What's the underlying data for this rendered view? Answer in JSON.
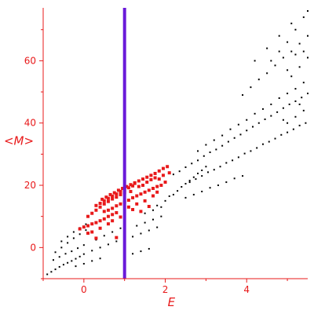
{
  "chart_data": {
    "type": "scatter",
    "xlabel": "E",
    "ylabel": "<M>",
    "xlim": [
      -1.0,
      5.5
    ],
    "ylim": [
      -10,
      77
    ],
    "x_ticks": [
      0,
      2,
      4
    ],
    "y_ticks": [
      0,
      20,
      40,
      60
    ],
    "grid": false,
    "vertical_line": {
      "x": 1.0,
      "color": "#6a1ad9"
    },
    "colors": {
      "axis": "#e8191a",
      "highlight": "#e8191a",
      "background_points": "#000000"
    },
    "series": [
      {
        "color": "#000000",
        "marker": "dot",
        "points": [
          [
            -0.9,
            -8.6
          ],
          [
            -0.8,
            -7.8
          ],
          [
            -0.7,
            -7.0
          ],
          [
            -0.6,
            -6.2
          ],
          [
            -0.5,
            -5.5
          ],
          [
            -0.4,
            -4.9
          ],
          [
            -0.3,
            -4.3
          ],
          [
            -0.2,
            -3.6
          ],
          [
            -0.1,
            -2.9
          ],
          [
            0.0,
            -2.1
          ],
          [
            -0.75,
            -4.0
          ],
          [
            -0.6,
            -3.0
          ],
          [
            -0.45,
            -2.0
          ],
          [
            -0.3,
            -1.2
          ],
          [
            -0.15,
            -0.2
          ],
          [
            0.0,
            0.8
          ],
          [
            -0.7,
            -1.5
          ],
          [
            -0.55,
            0.0
          ],
          [
            -0.4,
            1.5
          ],
          [
            -0.25,
            3.0
          ],
          [
            -0.1,
            4.3
          ],
          [
            0.05,
            5.6
          ],
          [
            -0.55,
            2.0
          ],
          [
            -0.4,
            3.5
          ],
          [
            -0.25,
            5.0
          ],
          [
            -0.1,
            6.3
          ],
          [
            0.05,
            7.5
          ],
          [
            -0.2,
            -6.0
          ],
          [
            0.0,
            -5.2
          ],
          [
            0.2,
            -4.3
          ],
          [
            0.4,
            -3.5
          ],
          [
            0.2,
            -1.0
          ],
          [
            0.4,
            0.0
          ],
          [
            0.6,
            1.0
          ],
          [
            0.8,
            2.0
          ],
          [
            0.3,
            2.5
          ],
          [
            0.5,
            3.8
          ],
          [
            0.7,
            5.0
          ],
          [
            0.9,
            6.2
          ],
          [
            1.2,
            3.5
          ],
          [
            1.4,
            4.5
          ],
          [
            1.6,
            5.5
          ],
          [
            1.8,
            6.5
          ],
          [
            1.3,
            7.0
          ],
          [
            1.5,
            8.0
          ],
          [
            1.7,
            9.0
          ],
          [
            1.9,
            10.0
          ],
          [
            1.5,
            11.0
          ],
          [
            1.7,
            12.0
          ],
          [
            1.9,
            13.0
          ],
          [
            1.2,
            -2.0
          ],
          [
            1.4,
            -1.2
          ],
          [
            1.6,
            -0.4
          ],
          [
            1.8,
            13.5
          ],
          [
            2.0,
            15.0
          ],
          [
            2.1,
            16.5
          ],
          [
            2.2,
            17.0
          ],
          [
            2.3,
            18.2
          ],
          [
            2.4,
            19.5
          ],
          [
            2.5,
            20.5
          ],
          [
            2.6,
            21.5
          ],
          [
            2.7,
            22.6
          ],
          [
            2.8,
            23.8
          ],
          [
            2.9,
            24.8
          ],
          [
            3.0,
            26.0
          ],
          [
            2.2,
            23.5
          ],
          [
            2.35,
            24.5
          ],
          [
            2.5,
            25.8
          ],
          [
            2.65,
            27.0
          ],
          [
            2.8,
            28.0
          ],
          [
            2.95,
            29.4
          ],
          [
            3.1,
            30.6
          ],
          [
            3.25,
            31.5
          ],
          [
            3.4,
            32.7
          ],
          [
            3.55,
            34.0
          ],
          [
            3.7,
            35.2
          ],
          [
            3.85,
            36.3
          ],
          [
            4.0,
            37.6
          ],
          [
            4.15,
            38.8
          ],
          [
            4.3,
            40.0
          ],
          [
            4.45,
            41.2
          ],
          [
            4.6,
            42.3
          ],
          [
            4.75,
            43.5
          ],
          [
            4.9,
            44.8
          ],
          [
            5.05,
            46.0
          ],
          [
            5.2,
            47.0
          ],
          [
            5.35,
            48.2
          ],
          [
            5.5,
            49.5
          ],
          [
            2.6,
            21.0
          ],
          [
            2.75,
            22.0
          ],
          [
            2.9,
            23.0
          ],
          [
            3.05,
            24.2
          ],
          [
            3.2,
            25.0
          ],
          [
            3.35,
            26.0
          ],
          [
            3.5,
            27.2
          ],
          [
            3.65,
            28.0
          ],
          [
            3.8,
            29.0
          ],
          [
            3.95,
            30.2
          ],
          [
            4.1,
            31.0
          ],
          [
            4.25,
            32.0
          ],
          [
            4.4,
            33.2
          ],
          [
            4.55,
            34.0
          ],
          [
            4.7,
            35.0
          ],
          [
            4.85,
            36.2
          ],
          [
            5.0,
            37.0
          ],
          [
            5.15,
            38.0
          ],
          [
            5.3,
            39.2
          ],
          [
            5.45,
            40.0
          ],
          [
            2.5,
            16.0
          ],
          [
            2.7,
            17.0
          ],
          [
            2.9,
            18.0
          ],
          [
            3.1,
            19.2
          ],
          [
            3.3,
            20.0
          ],
          [
            3.5,
            21.0
          ],
          [
            3.7,
            22.2
          ],
          [
            3.9,
            23.0
          ],
          [
            2.8,
            31.0
          ],
          [
            3.0,
            33.0
          ],
          [
            3.2,
            34.5
          ],
          [
            3.4,
            36.0
          ],
          [
            3.6,
            38.0
          ],
          [
            3.8,
            39.5
          ],
          [
            4.0,
            41.0
          ],
          [
            4.2,
            43.0
          ],
          [
            4.4,
            44.5
          ],
          [
            4.6,
            46.0
          ],
          [
            4.8,
            48.0
          ],
          [
            5.0,
            49.5
          ],
          [
            5.2,
            51.0
          ],
          [
            5.4,
            53.0
          ],
          [
            3.9,
            49.0
          ],
          [
            4.1,
            51.5
          ],
          [
            4.3,
            54.0
          ],
          [
            4.5,
            56.0
          ],
          [
            4.7,
            58.5
          ],
          [
            4.9,
            61.0
          ],
          [
            5.1,
            63.0
          ],
          [
            5.3,
            65.5
          ],
          [
            5.5,
            68.0
          ],
          [
            4.6,
            60.0
          ],
          [
            4.8,
            63.0
          ],
          [
            5.0,
            66.0
          ],
          [
            5.2,
            70.0
          ],
          [
            5.4,
            74.0
          ],
          [
            5.5,
            76.0
          ],
          [
            4.2,
            60.0
          ],
          [
            4.5,
            64.0
          ],
          [
            4.8,
            68.0
          ],
          [
            5.1,
            72.0
          ],
          [
            5.1,
            55.0
          ],
          [
            5.3,
            58.0
          ],
          [
            5.5,
            61.0
          ],
          [
            5.0,
            40.0
          ],
          [
            5.2,
            42.0
          ],
          [
            5.4,
            44.0
          ],
          [
            4.9,
            41.0
          ],
          [
            5.3,
            46.0
          ],
          [
            5.0,
            57.0
          ],
          [
            5.2,
            62.0
          ],
          [
            5.4,
            63.0
          ]
        ]
      },
      {
        "color": "#e8191a",
        "marker": "square",
        "points": [
          [
            -0.1,
            6.0
          ],
          [
            0.0,
            6.6
          ],
          [
            0.1,
            7.0
          ],
          [
            0.2,
            7.6
          ],
          [
            0.3,
            8.0
          ],
          [
            0.4,
            8.6
          ],
          [
            0.5,
            9.2
          ],
          [
            0.6,
            10.0
          ],
          [
            0.7,
            10.6
          ],
          [
            0.8,
            11.2
          ],
          [
            0.1,
            10.0
          ],
          [
            0.2,
            11.0
          ],
          [
            0.3,
            12.0
          ],
          [
            0.4,
            13.0
          ],
          [
            0.5,
            14.0
          ],
          [
            0.6,
            14.8
          ],
          [
            0.7,
            15.6
          ],
          [
            0.8,
            16.2
          ],
          [
            0.9,
            17.0
          ],
          [
            1.0,
            17.6
          ],
          [
            0.3,
            13.5
          ],
          [
            0.4,
            14.2
          ],
          [
            0.5,
            15.0
          ],
          [
            0.6,
            15.8
          ],
          [
            0.7,
            16.5
          ],
          [
            0.8,
            17.2
          ],
          [
            0.9,
            18.0
          ],
          [
            1.0,
            18.6
          ],
          [
            1.1,
            19.2
          ],
          [
            1.2,
            19.8
          ],
          [
            0.45,
            15.5
          ],
          [
            0.55,
            16.2
          ],
          [
            0.65,
            17.0
          ],
          [
            0.75,
            17.6
          ],
          [
            0.85,
            18.4
          ],
          [
            0.95,
            19.0
          ],
          [
            1.05,
            19.6
          ],
          [
            1.15,
            20.2
          ],
          [
            1.25,
            20.8
          ],
          [
            1.35,
            21.4
          ],
          [
            1.45,
            22.0
          ],
          [
            1.55,
            22.6
          ],
          [
            1.65,
            23.2
          ],
          [
            1.75,
            23.8
          ],
          [
            1.85,
            24.6
          ],
          [
            1.95,
            25.4
          ],
          [
            2.05,
            26.0
          ],
          [
            0.6,
            12.0
          ],
          [
            0.7,
            12.6
          ],
          [
            0.8,
            13.4
          ],
          [
            0.9,
            14.0
          ],
          [
            1.0,
            14.6
          ],
          [
            1.1,
            15.2
          ],
          [
            1.2,
            16.0
          ],
          [
            1.3,
            16.6
          ],
          [
            1.4,
            17.2
          ],
          [
            1.5,
            17.8
          ],
          [
            1.6,
            18.4
          ],
          [
            1.7,
            19.0
          ],
          [
            1.8,
            19.6
          ],
          [
            1.1,
            13.0
          ],
          [
            1.2,
            12.2
          ],
          [
            1.3,
            14.0
          ],
          [
            1.4,
            11.6
          ],
          [
            1.5,
            15.0
          ],
          [
            1.6,
            13.2
          ],
          [
            1.7,
            16.6
          ],
          [
            1.8,
            17.8
          ],
          [
            1.9,
            20.0
          ],
          [
            2.0,
            21.0
          ],
          [
            0.2,
            5.0
          ],
          [
            0.4,
            6.2
          ],
          [
            0.6,
            7.6
          ],
          [
            0.8,
            3.2
          ],
          [
            0.3,
            3.0
          ],
          [
            0.1,
            4.6
          ],
          [
            0.5,
            11.6
          ],
          [
            0.9,
            9.8
          ],
          [
            0.7,
            8.6
          ],
          [
            1.15,
            18.0
          ],
          [
            1.25,
            20.6
          ],
          [
            1.35,
            19.6
          ],
          [
            1.45,
            20.0
          ],
          [
            1.55,
            21.0
          ],
          [
            1.65,
            21.8
          ],
          [
            1.75,
            22.4
          ],
          [
            1.85,
            22.0
          ],
          [
            1.95,
            23.2
          ],
          [
            2.1,
            24.0
          ]
        ]
      }
    ]
  }
}
